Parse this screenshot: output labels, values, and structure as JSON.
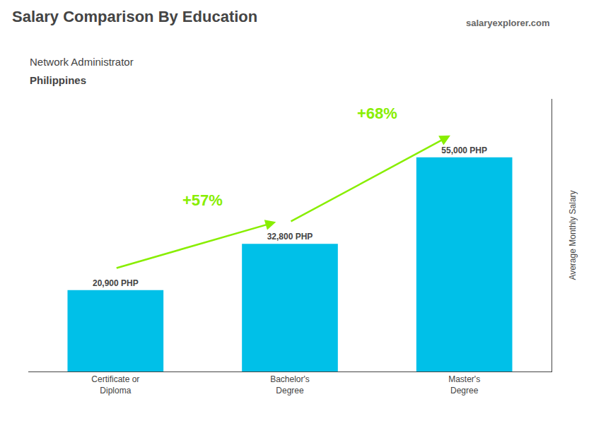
{
  "chart_data": {
    "type": "bar",
    "title": "Salary Comparison By Education",
    "subtitle": [
      "Network Administrator",
      "Philippines"
    ],
    "ylabel": "Average Monthly Salary",
    "categories": [
      "Certificate or\nDiploma",
      "Bachelor's\nDegree",
      "Master's\nDegree"
    ],
    "values": [
      20900,
      32800,
      55000
    ],
    "value_labels": [
      "20,900 PHP",
      "32,800 PHP",
      "55,000 PHP"
    ],
    "data_labels": true,
    "color": "#00c0e8",
    "ylim": [
      0,
      70000
    ],
    "tick_labels": "x",
    "grid": false,
    "annotations": [
      {
        "text": "+57%",
        "color": "#88ee00"
      },
      {
        "text": "+68%",
        "color": "#88ee00"
      }
    ],
    "watermark": [
      "salary",
      "explorer",
      ".com"
    ]
  }
}
